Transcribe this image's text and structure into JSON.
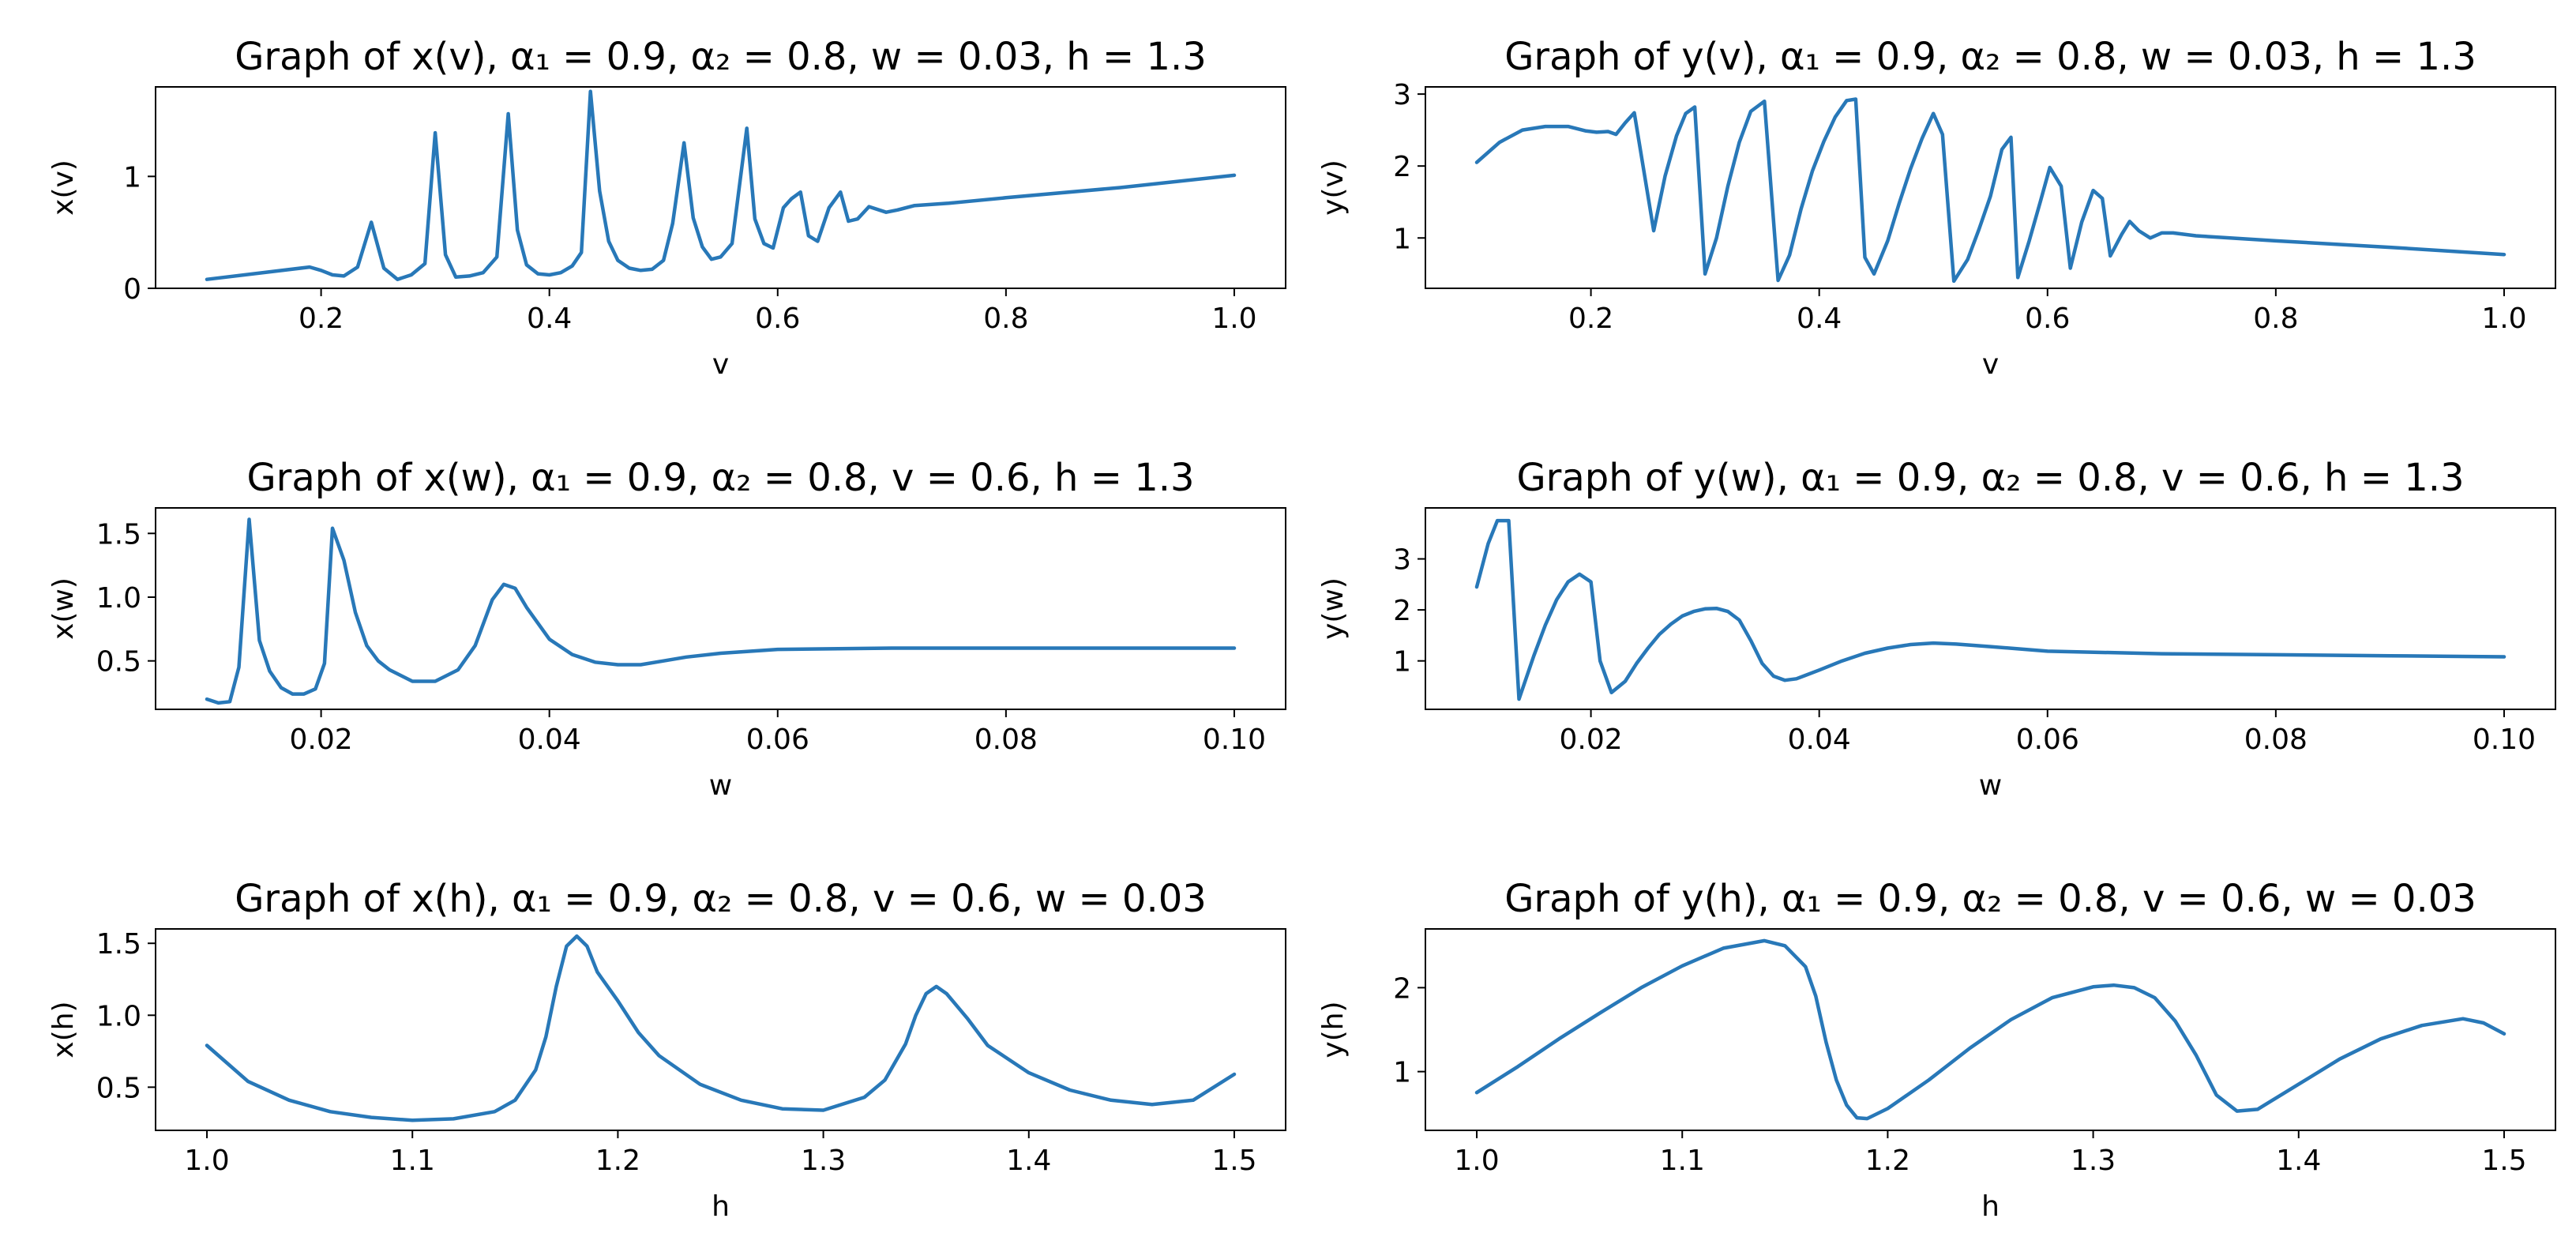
{
  "line_color": "#2878b8",
  "chart_data": [
    {
      "type": "line",
      "title": "Graph of x(v), α₁ = 0.9, α₂ = 0.8, w = 0.03, h = 1.3",
      "xlabel": "v",
      "ylabel": "x(v)",
      "xlim": [
        0.055,
        1.045
      ],
      "ylim": [
        0,
        1.8
      ],
      "xticks": [
        0.2,
        0.4,
        0.6,
        0.8,
        1.0
      ],
      "xtick_labels": [
        "0.2",
        "0.4",
        "0.6",
        "0.8",
        "1.0"
      ],
      "yticks": [
        0,
        1
      ],
      "ytick_labels": [
        "0",
        "1"
      ],
      "x": [
        0.1,
        0.19,
        0.2,
        0.21,
        0.22,
        0.232,
        0.244,
        0.255,
        0.267,
        0.279,
        0.291,
        0.3,
        0.309,
        0.318,
        0.33,
        0.342,
        0.354,
        0.364,
        0.372,
        0.38,
        0.39,
        0.4,
        0.41,
        0.42,
        0.428,
        0.436,
        0.444,
        0.452,
        0.46,
        0.47,
        0.48,
        0.49,
        0.5,
        0.508,
        0.518,
        0.526,
        0.534,
        0.542,
        0.55,
        0.56,
        0.573,
        0.58,
        0.588,
        0.596,
        0.605,
        0.612,
        0.62,
        0.627,
        0.635,
        0.645,
        0.655,
        0.662,
        0.67,
        0.68,
        0.695,
        0.705,
        0.72,
        0.75,
        0.8,
        0.9,
        1.0
      ],
      "values": [
        0.08,
        0.19,
        0.16,
        0.12,
        0.11,
        0.19,
        0.59,
        0.18,
        0.08,
        0.12,
        0.22,
        1.39,
        0.3,
        0.1,
        0.11,
        0.14,
        0.28,
        1.56,
        0.52,
        0.21,
        0.13,
        0.12,
        0.14,
        0.2,
        0.32,
        1.76,
        0.87,
        0.42,
        0.25,
        0.18,
        0.16,
        0.17,
        0.25,
        0.58,
        1.3,
        0.63,
        0.37,
        0.26,
        0.28,
        0.4,
        1.43,
        0.62,
        0.4,
        0.36,
        0.72,
        0.8,
        0.86,
        0.47,
        0.42,
        0.72,
        0.86,
        0.6,
        0.62,
        0.73,
        0.68,
        0.7,
        0.74,
        0.76,
        0.81,
        0.9,
        1.01
      ]
    },
    {
      "type": "line",
      "title": "Graph of y(v), α₁ = 0.9, α₂ = 0.8, w = 0.03, h = 1.3",
      "xlabel": "v",
      "ylabel": "y(v)",
      "xlim": [
        0.055,
        1.045
      ],
      "ylim": [
        0.3,
        3.1
      ],
      "xticks": [
        0.2,
        0.4,
        0.6,
        0.8,
        1.0
      ],
      "xtick_labels": [
        "0.2",
        "0.4",
        "0.6",
        "0.8",
        "1.0"
      ],
      "yticks": [
        1,
        2,
        3
      ],
      "ytick_labels": [
        "1",
        "2",
        "3"
      ],
      "x": [
        0.1,
        0.12,
        0.14,
        0.16,
        0.18,
        0.195,
        0.205,
        0.215,
        0.222,
        0.23,
        0.238,
        0.255,
        0.265,
        0.275,
        0.283,
        0.291,
        0.3,
        0.31,
        0.32,
        0.33,
        0.34,
        0.352,
        0.364,
        0.374,
        0.384,
        0.394,
        0.404,
        0.414,
        0.424,
        0.432,
        0.44,
        0.448,
        0.46,
        0.47,
        0.48,
        0.49,
        0.5,
        0.508,
        0.518,
        0.53,
        0.54,
        0.55,
        0.56,
        0.568,
        0.574,
        0.584,
        0.594,
        0.602,
        0.612,
        0.62,
        0.63,
        0.64,
        0.648,
        0.655,
        0.665,
        0.672,
        0.68,
        0.69,
        0.7,
        0.71,
        0.73,
        0.76,
        0.8,
        0.9,
        1.0
      ],
      "values": [
        2.05,
        2.33,
        2.5,
        2.55,
        2.55,
        2.49,
        2.47,
        2.48,
        2.44,
        2.6,
        2.74,
        1.1,
        1.86,
        2.42,
        2.73,
        2.82,
        0.5,
        1.0,
        1.72,
        2.33,
        2.76,
        2.9,
        0.41,
        0.76,
        1.4,
        1.93,
        2.34,
        2.68,
        2.91,
        2.93,
        0.73,
        0.5,
        0.96,
        1.48,
        1.96,
        2.38,
        2.73,
        2.44,
        0.4,
        0.7,
        1.12,
        1.58,
        2.23,
        2.4,
        0.45,
        0.96,
        1.52,
        1.98,
        1.72,
        0.58,
        1.22,
        1.66,
        1.55,
        0.75,
        1.05,
        1.23,
        1.1,
        1.0,
        1.07,
        1.07,
        1.03,
        1.0,
        0.96,
        0.87,
        0.77
      ]
    },
    {
      "type": "line",
      "title": "Graph of x(w), α₁ = 0.9, α₂ = 0.8, v = 0.6, h = 1.3",
      "xlabel": "w",
      "ylabel": "x(w)",
      "xlim": [
        0.0055,
        0.1045
      ],
      "ylim": [
        0.12,
        1.7
      ],
      "xticks": [
        0.02,
        0.04,
        0.06,
        0.08,
        0.1
      ],
      "xtick_labels": [
        "0.02",
        "0.04",
        "0.06",
        "0.08",
        "0.10"
      ],
      "yticks": [
        0.5,
        1.0,
        1.5
      ],
      "ytick_labels": [
        "0.5",
        "1.0",
        "1.5"
      ],
      "x": [
        0.01,
        0.011,
        0.012,
        0.0128,
        0.0137,
        0.0146,
        0.0155,
        0.0165,
        0.0175,
        0.0185,
        0.0195,
        0.0203,
        0.021,
        0.022,
        0.023,
        0.024,
        0.025,
        0.026,
        0.028,
        0.03,
        0.032,
        0.0335,
        0.035,
        0.036,
        0.037,
        0.038,
        0.04,
        0.042,
        0.044,
        0.046,
        0.048,
        0.05,
        0.052,
        0.055,
        0.06,
        0.07,
        0.08,
        0.09,
        0.1
      ],
      "values": [
        0.2,
        0.17,
        0.18,
        0.45,
        1.61,
        0.66,
        0.42,
        0.29,
        0.24,
        0.24,
        0.28,
        0.48,
        1.54,
        1.29,
        0.88,
        0.62,
        0.5,
        0.43,
        0.34,
        0.34,
        0.43,
        0.62,
        0.98,
        1.1,
        1.07,
        0.92,
        0.67,
        0.55,
        0.49,
        0.47,
        0.47,
        0.5,
        0.53,
        0.56,
        0.59,
        0.6,
        0.6,
        0.6,
        0.6
      ]
    },
    {
      "type": "line",
      "title": "Graph of y(w), α₁ = 0.9, α₂ = 0.8, v = 0.6, h = 1.3",
      "xlabel": "w",
      "ylabel": "y(w)",
      "xlim": [
        0.0055,
        0.1045
      ],
      "ylim": [
        0.05,
        4.0
      ],
      "xticks": [
        0.02,
        0.04,
        0.06,
        0.08,
        0.1
      ],
      "xtick_labels": [
        "0.02",
        "0.04",
        "0.06",
        "0.08",
        "0.10"
      ],
      "yticks": [
        1,
        2,
        3
      ],
      "ytick_labels": [
        "1",
        "2",
        "3"
      ],
      "x": [
        0.01,
        0.011,
        0.0118,
        0.0128,
        0.0137,
        0.015,
        0.016,
        0.017,
        0.018,
        0.019,
        0.02,
        0.0208,
        0.0218,
        0.023,
        0.024,
        0.025,
        0.026,
        0.027,
        0.028,
        0.029,
        0.03,
        0.031,
        0.032,
        0.033,
        0.034,
        0.035,
        0.036,
        0.037,
        0.038,
        0.04,
        0.042,
        0.044,
        0.046,
        0.048,
        0.05,
        0.052,
        0.055,
        0.06,
        0.07,
        0.08,
        0.09,
        0.1
      ],
      "values": [
        2.45,
        3.3,
        3.75,
        3.75,
        0.25,
        1.1,
        1.7,
        2.2,
        2.55,
        2.7,
        2.55,
        1.0,
        0.38,
        0.6,
        0.95,
        1.25,
        1.52,
        1.72,
        1.88,
        1.97,
        2.02,
        2.03,
        1.97,
        1.8,
        1.4,
        0.95,
        0.7,
        0.62,
        0.65,
        0.82,
        1.0,
        1.15,
        1.25,
        1.32,
        1.35,
        1.33,
        1.28,
        1.19,
        1.14,
        1.12,
        1.1,
        1.08
      ]
    },
    {
      "type": "line",
      "title": "Graph of x(h), α₁ = 0.9, α₂ = 0.8, v = 0.6, w = 0.03",
      "xlabel": "h",
      "ylabel": "x(h)",
      "xlim": [
        0.975,
        1.525
      ],
      "ylim": [
        0.2,
        1.6
      ],
      "xticks": [
        1.0,
        1.1,
        1.2,
        1.3,
        1.4,
        1.5
      ],
      "xtick_labels": [
        "1.0",
        "1.1",
        "1.2",
        "1.3",
        "1.4",
        "1.5"
      ],
      "yticks": [
        0.5,
        1.0,
        1.5
      ],
      "ytick_labels": [
        "0.5",
        "1.0",
        "1.5"
      ],
      "x": [
        1.0,
        1.02,
        1.04,
        1.06,
        1.08,
        1.1,
        1.12,
        1.14,
        1.15,
        1.16,
        1.165,
        1.17,
        1.175,
        1.18,
        1.185,
        1.19,
        1.2,
        1.21,
        1.22,
        1.24,
        1.26,
        1.28,
        1.3,
        1.32,
        1.33,
        1.34,
        1.345,
        1.35,
        1.355,
        1.36,
        1.37,
        1.38,
        1.4,
        1.42,
        1.44,
        1.46,
        1.48,
        1.5
      ],
      "values": [
        0.79,
        0.54,
        0.41,
        0.33,
        0.29,
        0.27,
        0.28,
        0.33,
        0.41,
        0.62,
        0.85,
        1.2,
        1.48,
        1.55,
        1.48,
        1.3,
        1.1,
        0.88,
        0.72,
        0.52,
        0.41,
        0.35,
        0.34,
        0.43,
        0.55,
        0.8,
        1.0,
        1.15,
        1.2,
        1.15,
        0.98,
        0.79,
        0.6,
        0.48,
        0.41,
        0.38,
        0.41,
        0.59
      ]
    },
    {
      "type": "line",
      "title": "Graph of y(h), α₁ = 0.9, α₂ = 0.8, v = 0.6, w = 0.03",
      "xlabel": "h",
      "ylabel": "y(h)",
      "xlim": [
        0.975,
        1.525
      ],
      "ylim": [
        0.3,
        2.7
      ],
      "xticks": [
        1.0,
        1.1,
        1.2,
        1.3,
        1.4,
        1.5
      ],
      "xtick_labels": [
        "1.0",
        "1.1",
        "1.2",
        "1.3",
        "1.4",
        "1.5"
      ],
      "yticks": [
        1,
        2
      ],
      "ytick_labels": [
        "1",
        "2"
      ],
      "x": [
        1.0,
        1.02,
        1.04,
        1.06,
        1.08,
        1.1,
        1.12,
        1.14,
        1.15,
        1.16,
        1.165,
        1.17,
        1.175,
        1.18,
        1.185,
        1.19,
        1.2,
        1.22,
        1.24,
        1.26,
        1.28,
        1.3,
        1.31,
        1.32,
        1.33,
        1.34,
        1.35,
        1.36,
        1.37,
        1.38,
        1.4,
        1.42,
        1.44,
        1.46,
        1.48,
        1.49,
        1.5
      ],
      "values": [
        0.75,
        1.06,
        1.39,
        1.7,
        2.0,
        2.26,
        2.47,
        2.56,
        2.5,
        2.25,
        1.9,
        1.35,
        0.9,
        0.6,
        0.45,
        0.44,
        0.56,
        0.9,
        1.28,
        1.62,
        1.88,
        2.01,
        2.03,
        2.0,
        1.88,
        1.6,
        1.2,
        0.72,
        0.53,
        0.55,
        0.85,
        1.15,
        1.39,
        1.55,
        1.63,
        1.58,
        1.45
      ]
    }
  ]
}
